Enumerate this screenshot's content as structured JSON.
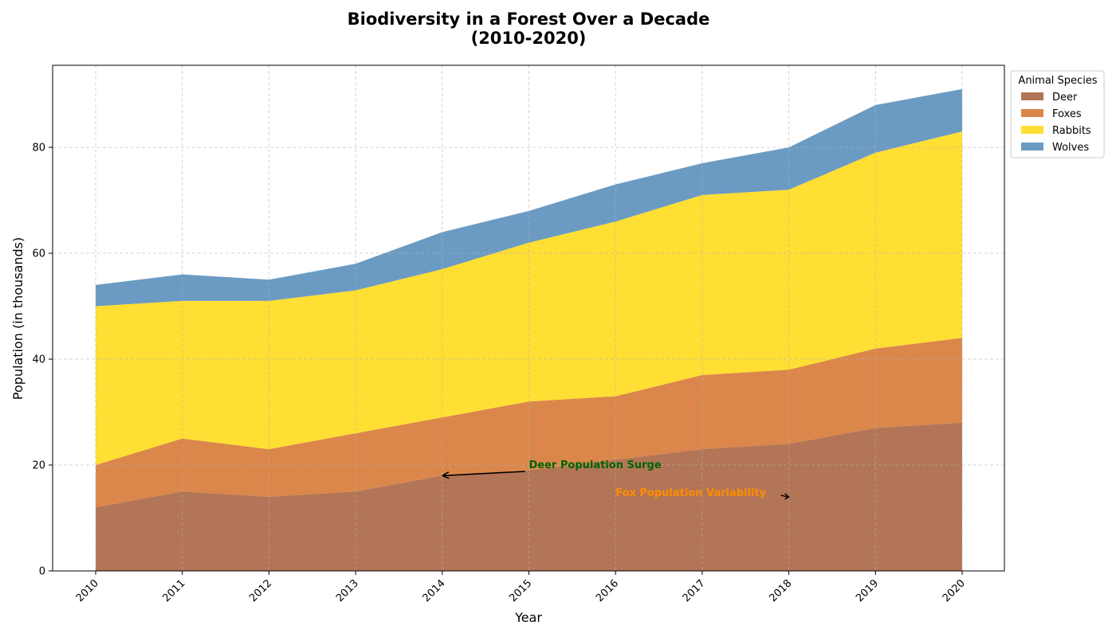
{
  "chart_data": {
    "type": "area",
    "stacked": true,
    "title": "Biodiversity in a Forest Over a Decade",
    "subtitle": "(2010-2020)",
    "xlabel": "Year",
    "ylabel": "Population (in thousands)",
    "categories": [
      "2010",
      "2011",
      "2012",
      "2013",
      "2014",
      "2015",
      "2016",
      "2017",
      "2018",
      "2019",
      "2020"
    ],
    "ylim": [
      0,
      95.5
    ],
    "yticks": [
      0,
      20,
      40,
      60,
      80
    ],
    "grid": true,
    "legend": {
      "title": "Animal Species",
      "placement": "outside-top-right"
    },
    "series": [
      {
        "name": "Deer",
        "color": "#a0522d",
        "values": [
          12,
          15,
          14,
          15,
          18,
          19,
          21,
          23,
          24,
          27,
          28
        ]
      },
      {
        "name": "Foxes",
        "color": "#d2691e",
        "values": [
          8,
          10,
          9,
          11,
          11,
          13,
          12,
          14,
          14,
          15,
          16
        ]
      },
      {
        "name": "Rabbits",
        "color": "#ffd700",
        "values": [
          30,
          26,
          28,
          27,
          28,
          30,
          33,
          34,
          34,
          37,
          39
        ]
      },
      {
        "name": "Wolves",
        "color": "#4682b4",
        "values": [
          4,
          5,
          4,
          5,
          7,
          6,
          7,
          6,
          8,
          9,
          8
        ]
      }
    ],
    "annotations": [
      {
        "text": "Deer Population Surge",
        "color": "#006400",
        "point": {
          "x": "2014",
          "y": 18
        },
        "text_at": {
          "x": "2015",
          "y": 20
        }
      },
      {
        "text": "Fox Population Variability",
        "color": "#ff8c00",
        "point": {
          "x": "2018",
          "y": 14
        },
        "text_at": {
          "x": "2016",
          "y": 14
        }
      }
    ]
  }
}
